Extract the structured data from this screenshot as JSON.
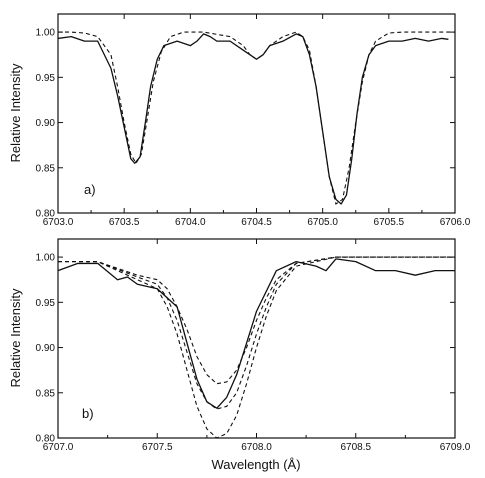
{
  "chart_data": [
    {
      "type": "line",
      "panel_label": "a)",
      "xlabel": "",
      "ylabel": "Relative Intensity",
      "xlim": [
        6703.0,
        6706.0
      ],
      "ylim": [
        0.8,
        1.02
      ],
      "xticks": [
        "6703.0",
        "6703.5",
        "6704.0",
        "6704.5",
        "6705.0",
        "6705.5",
        "6706.0"
      ],
      "yticks": [
        "0.80",
        "0.85",
        "0.90",
        "0.95",
        "1.00"
      ],
      "grid": false,
      "series": [
        {
          "style": "solid",
          "x": [
            6703.0,
            6703.1,
            6703.2,
            6703.3,
            6703.4,
            6703.45,
            6703.5,
            6703.55,
            6703.58,
            6703.62,
            6703.66,
            6703.7,
            6703.75,
            6703.8,
            6703.9,
            6704.0,
            6704.05,
            6704.1,
            6704.15,
            6704.2,
            6704.3,
            6704.4,
            6704.45,
            6704.5,
            6704.55,
            6704.6,
            6704.7,
            6704.8,
            6704.85,
            6704.9,
            6704.95,
            6705.0,
            6705.05,
            6705.1,
            6705.14,
            6705.18,
            6705.22,
            6705.26,
            6705.3,
            6705.35,
            6705.4,
            6705.5,
            6705.6,
            6705.7,
            6705.8,
            6705.9,
            6705.95
          ],
          "y": [
            0.993,
            0.995,
            0.99,
            0.99,
            0.96,
            0.93,
            0.895,
            0.86,
            0.855,
            0.862,
            0.9,
            0.94,
            0.97,
            0.985,
            0.99,
            0.985,
            0.99,
            0.998,
            0.995,
            0.99,
            0.99,
            0.98,
            0.975,
            0.97,
            0.975,
            0.985,
            0.99,
            0.998,
            0.995,
            0.975,
            0.94,
            0.89,
            0.84,
            0.815,
            0.81,
            0.82,
            0.86,
            0.91,
            0.95,
            0.975,
            0.985,
            0.99,
            0.99,
            0.993,
            0.99,
            0.993,
            0.992
          ]
        },
        {
          "style": "dashed",
          "x": [
            6703.0,
            6703.1,
            6703.2,
            6703.3,
            6703.4,
            6703.45,
            6703.5,
            6703.55,
            6703.59,
            6703.63,
            6703.67,
            6703.72,
            6703.78,
            6703.85,
            6703.95,
            6704.1,
            6704.3,
            6704.4,
            6704.45,
            6704.5,
            6704.55,
            6704.6,
            6704.7,
            6704.8,
            6704.85,
            6704.9,
            6704.95,
            6705.0,
            6705.05,
            6705.1,
            6705.15,
            6705.2,
            6705.25,
            6705.3,
            6705.35,
            6705.4,
            6705.5,
            6705.6,
            6705.8,
            6706.0
          ],
          "y": [
            1.0,
            1.0,
            0.999,
            0.995,
            0.975,
            0.94,
            0.9,
            0.865,
            0.855,
            0.865,
            0.9,
            0.945,
            0.978,
            0.995,
            1.0,
            1.0,
            0.995,
            0.985,
            0.975,
            0.97,
            0.975,
            0.985,
            0.995,
            1.0,
            0.995,
            0.98,
            0.94,
            0.89,
            0.84,
            0.81,
            0.815,
            0.85,
            0.9,
            0.945,
            0.975,
            0.99,
            0.999,
            1.0,
            1.0,
            1.0
          ]
        }
      ]
    },
    {
      "type": "line",
      "panel_label": "b)",
      "xlabel": "Wavelength (Å)",
      "ylabel": "Relative Intensity",
      "xlim": [
        6707.0,
        6709.0
      ],
      "ylim": [
        0.8,
        1.02
      ],
      "xticks": [
        "6707.0",
        "6707.5",
        "6708.0",
        "6708.5",
        "6709.0"
      ],
      "yticks": [
        "0.80",
        "0.85",
        "0.90",
        "0.95",
        "1.00"
      ],
      "grid": false,
      "series": [
        {
          "style": "solid",
          "x": [
            6707.0,
            6707.1,
            6707.2,
            6707.3,
            6707.35,
            6707.4,
            6707.5,
            6707.6,
            6707.65,
            6707.7,
            6707.75,
            6707.8,
            6707.85,
            6707.9,
            6707.95,
            6708.0,
            6708.1,
            6708.2,
            6708.3,
            6708.35,
            6708.4,
            6708.5,
            6708.6,
            6708.7,
            6708.8,
            6708.9,
            6709.0
          ],
          "y": [
            0.985,
            0.993,
            0.993,
            0.975,
            0.978,
            0.97,
            0.965,
            0.945,
            0.905,
            0.865,
            0.84,
            0.833,
            0.845,
            0.87,
            0.905,
            0.94,
            0.985,
            0.995,
            0.99,
            0.985,
            0.998,
            0.995,
            0.985,
            0.985,
            0.98,
            0.985,
            0.985
          ]
        },
        {
          "style": "dashed",
          "x": [
            6707.0,
            6707.2,
            6707.4,
            6707.5,
            6707.55,
            6707.6,
            6707.65,
            6707.7,
            6707.75,
            6707.8,
            6707.85,
            6707.9,
            6707.95,
            6708.0,
            6708.05,
            6708.1,
            6708.2,
            6708.4,
            6708.6,
            6709.0
          ],
          "y": [
            0.995,
            0.995,
            0.98,
            0.975,
            0.965,
            0.945,
            0.92,
            0.89,
            0.87,
            0.86,
            0.862,
            0.875,
            0.9,
            0.93,
            0.955,
            0.975,
            0.993,
            1.0,
            1.0,
            1.0
          ]
        },
        {
          "style": "dashed",
          "x": [
            6707.0,
            6707.2,
            6707.4,
            6707.5,
            6707.55,
            6707.6,
            6707.65,
            6707.7,
            6707.75,
            6707.8,
            6707.85,
            6707.9,
            6707.95,
            6708.0,
            6708.05,
            6708.1,
            6708.2,
            6708.4,
            6708.6,
            6709.0
          ],
          "y": [
            0.995,
            0.995,
            0.978,
            0.97,
            0.955,
            0.93,
            0.895,
            0.86,
            0.84,
            0.832,
            0.835,
            0.85,
            0.88,
            0.915,
            0.945,
            0.97,
            0.993,
            1.0,
            1.0,
            1.0
          ]
        },
        {
          "style": "dashed",
          "x": [
            6707.0,
            6707.2,
            6707.4,
            6707.5,
            6707.55,
            6707.6,
            6707.65,
            6707.7,
            6707.75,
            6707.8,
            6707.85,
            6707.9,
            6707.95,
            6708.0,
            6708.05,
            6708.1,
            6708.2,
            6708.4,
            6708.6,
            6709.0
          ],
          "y": [
            0.995,
            0.995,
            0.975,
            0.965,
            0.945,
            0.915,
            0.875,
            0.835,
            0.81,
            0.8,
            0.805,
            0.825,
            0.86,
            0.9,
            0.935,
            0.963,
            0.99,
            1.0,
            1.0,
            1.0
          ]
        }
      ]
    }
  ]
}
